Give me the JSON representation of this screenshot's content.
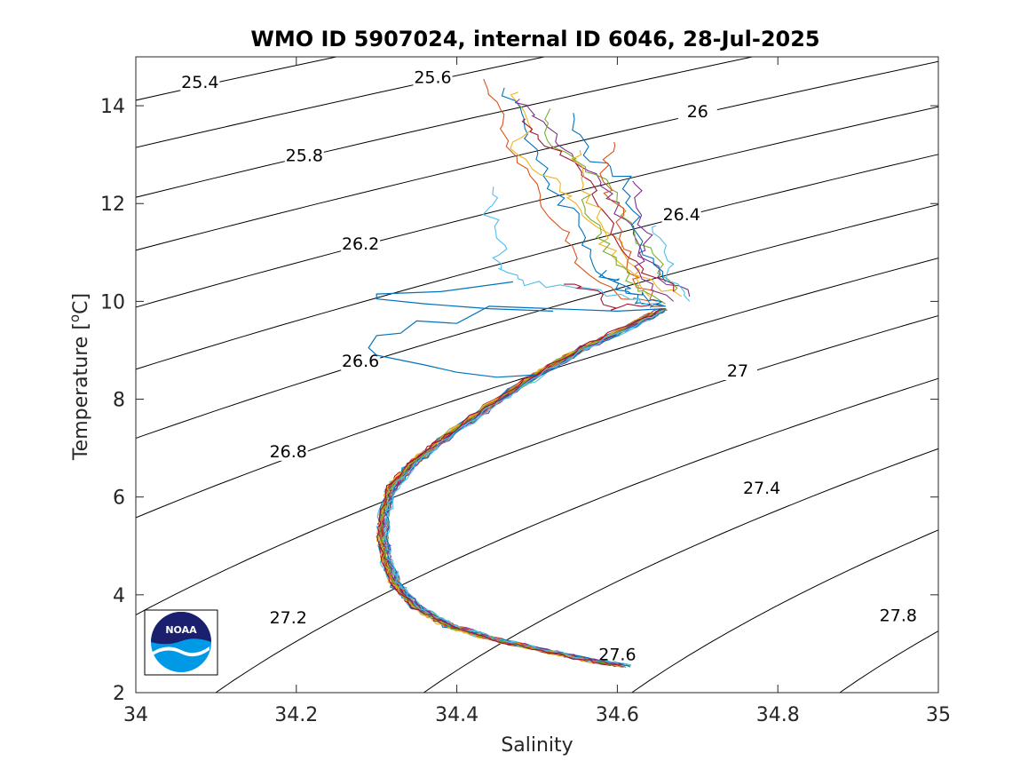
{
  "chart_data": {
    "type": "line",
    "title": "WMO ID 5907024, internal ID 6046, 28-Jul-2025",
    "xlabel": "Salinity",
    "ylabel": "Temperature [",
    "ylabel_sup": "o",
    "ylabel_end": "C]",
    "xlim": [
      34,
      35
    ],
    "ylim": [
      2,
      15
    ],
    "xticks": [
      34,
      34.2,
      34.4,
      34.6,
      34.8,
      35
    ],
    "xtick_labels": [
      "34",
      "34.2",
      "34.4",
      "34.6",
      "34.8",
      "35"
    ],
    "yticks": [
      2,
      4,
      6,
      8,
      10,
      12,
      14
    ],
    "ytick_labels": [
      "2",
      "4",
      "6",
      "8",
      "10",
      "12",
      "14"
    ],
    "grid": false,
    "density_contours": [
      {
        "label": "25.4",
        "label_s": 34.08,
        "label_t": 14.4
      },
      {
        "label": "25.6",
        "label_s": 34.37,
        "label_t": 14.5
      },
      {
        "label": "25.8",
        "label_s": 34.21,
        "label_t": 12.9
      },
      {
        "label": "26",
        "label_s": 34.7,
        "label_t": 13.8
      },
      {
        "label": "26.2",
        "label_s": 34.28,
        "label_t": 11.1
      },
      {
        "label": "26.4",
        "label_s": 34.68,
        "label_t": 11.7
      },
      {
        "label": "26.6",
        "label_s": 34.28,
        "label_t": 8.7
      },
      {
        "label": "26.8",
        "label_s": 34.19,
        "label_t": 6.85
      },
      {
        "label": "27",
        "label_s": 34.75,
        "label_t": 8.5
      },
      {
        "label": "27.2",
        "label_s": 34.19,
        "label_t": 3.45
      },
      {
        "label": "27.4",
        "label_s": 34.78,
        "label_t": 6.1
      },
      {
        "label": "27.6",
        "label_s": 34.6,
        "label_t": 2.7
      },
      {
        "label": "27.8",
        "label_s": 34.95,
        "label_t": 3.5
      }
    ],
    "series_colors": [
      "#0072BD",
      "#D95319",
      "#EDB120",
      "#7E2F8E",
      "#77AC30",
      "#4DBEEE",
      "#A2142F"
    ],
    "core_profile": [
      {
        "s": 34.61,
        "t": 2.55
      },
      {
        "s": 34.56,
        "t": 2.68
      },
      {
        "s": 34.5,
        "t": 2.9
      },
      {
        "s": 34.44,
        "t": 3.12
      },
      {
        "s": 34.39,
        "t": 3.38
      },
      {
        "s": 34.35,
        "t": 3.75
      },
      {
        "s": 34.325,
        "t": 4.2
      },
      {
        "s": 34.313,
        "t": 4.7
      },
      {
        "s": 34.308,
        "t": 5.2
      },
      {
        "s": 34.31,
        "t": 5.7
      },
      {
        "s": 34.32,
        "t": 6.2
      },
      {
        "s": 34.35,
        "t": 6.75
      },
      {
        "s": 34.39,
        "t": 7.25
      },
      {
        "s": 34.44,
        "t": 7.85
      },
      {
        "s": 34.5,
        "t": 8.5
      },
      {
        "s": 34.56,
        "t": 9.05
      },
      {
        "s": 34.63,
        "t": 9.6
      },
      {
        "s": 34.66,
        "t": 9.85
      }
    ],
    "outlier_profile": [
      {
        "s": 34.66,
        "t": 9.85
      },
      {
        "s": 34.6,
        "t": 9.8
      },
      {
        "s": 34.52,
        "t": 9.85
      },
      {
        "s": 34.44,
        "t": 9.9
      },
      {
        "s": 34.4,
        "t": 9.55
      },
      {
        "s": 34.35,
        "t": 9.6
      },
      {
        "s": 34.33,
        "t": 9.35
      },
      {
        "s": 34.3,
        "t": 9.3
      },
      {
        "s": 34.29,
        "t": 9.05
      },
      {
        "s": 34.3,
        "t": 8.9
      },
      {
        "s": 34.33,
        "t": 8.8
      },
      {
        "s": 34.36,
        "t": 8.7
      },
      {
        "s": 34.4,
        "t": 8.55
      },
      {
        "s": 34.45,
        "t": 8.45
      },
      {
        "s": 34.5,
        "t": 8.5
      }
    ],
    "outlier_upper": [
      {
        "s": 34.47,
        "t": 10.4
      },
      {
        "s": 34.38,
        "t": 10.2
      },
      {
        "s": 34.3,
        "t": 10.15
      },
      {
        "s": 34.3,
        "t": 10.05
      },
      {
        "s": 34.36,
        "t": 9.95
      },
      {
        "s": 34.44,
        "t": 9.85
      },
      {
        "s": 34.52,
        "t": 9.8
      }
    ],
    "upper_profiles": [
      [
        {
          "s": 34.46,
          "t": 14.35
        },
        {
          "s": 34.48,
          "t": 13.7
        },
        {
          "s": 34.5,
          "t": 13.0
        },
        {
          "s": 34.52,
          "t": 12.3
        },
        {
          "s": 34.55,
          "t": 11.6
        },
        {
          "s": 34.57,
          "t": 10.9
        },
        {
          "s": 34.6,
          "t": 10.3
        },
        {
          "s": 34.63,
          "t": 10.0
        },
        {
          "s": 34.66,
          "t": 9.9
        }
      ],
      [
        {
          "s": 34.44,
          "t": 14.5
        },
        {
          "s": 34.45,
          "t": 13.8
        },
        {
          "s": 34.47,
          "t": 13.0
        },
        {
          "s": 34.5,
          "t": 12.2
        },
        {
          "s": 34.53,
          "t": 11.5
        },
        {
          "s": 34.55,
          "t": 10.8
        },
        {
          "s": 34.6,
          "t": 10.1
        },
        {
          "s": 34.66,
          "t": 9.9
        }
      ],
      [
        {
          "s": 34.47,
          "t": 14.3
        },
        {
          "s": 34.49,
          "t": 13.6
        },
        {
          "s": 34.47,
          "t": 13.0
        },
        {
          "s": 34.53,
          "t": 12.4
        },
        {
          "s": 34.55,
          "t": 11.9
        },
        {
          "s": 34.6,
          "t": 11.2
        },
        {
          "s": 34.63,
          "t": 10.5
        },
        {
          "s": 34.68,
          "t": 10.1
        }
      ],
      [
        {
          "s": 34.47,
          "t": 14.1
        },
        {
          "s": 34.5,
          "t": 13.8
        },
        {
          "s": 34.53,
          "t": 13.2
        },
        {
          "s": 34.57,
          "t": 12.6
        },
        {
          "s": 34.6,
          "t": 12.0
        },
        {
          "s": 34.62,
          "t": 11.2
        },
        {
          "s": 34.65,
          "t": 10.6
        },
        {
          "s": 34.69,
          "t": 10.1
        }
      ],
      [
        {
          "s": 34.51,
          "t": 13.9
        },
        {
          "s": 34.52,
          "t": 13.2
        },
        {
          "s": 34.56,
          "t": 12.8
        },
        {
          "s": 34.6,
          "t": 12.2
        },
        {
          "s": 34.62,
          "t": 11.4
        },
        {
          "s": 34.65,
          "t": 10.8
        },
        {
          "s": 34.67,
          "t": 10.2
        }
      ],
      [
        {
          "s": 34.45,
          "t": 12.3
        },
        {
          "s": 34.44,
          "t": 11.8
        },
        {
          "s": 34.46,
          "t": 11.2
        },
        {
          "s": 34.45,
          "t": 10.7
        },
        {
          "s": 34.48,
          "t": 10.4
        },
        {
          "s": 34.54,
          "t": 10.3
        },
        {
          "s": 34.6,
          "t": 10.1
        },
        {
          "s": 34.66,
          "t": 9.9
        }
      ],
      [
        {
          "s": 34.48,
          "t": 13.7
        },
        {
          "s": 34.51,
          "t": 13.3
        },
        {
          "s": 34.55,
          "t": 12.7
        },
        {
          "s": 34.58,
          "t": 12.0
        },
        {
          "s": 34.6,
          "t": 11.3
        },
        {
          "s": 34.63,
          "t": 10.7
        },
        {
          "s": 34.67,
          "t": 10.2
        }
      ],
      [
        {
          "s": 34.54,
          "t": 13.9
        },
        {
          "s": 34.56,
          "t": 13.0
        },
        {
          "s": 34.61,
          "t": 12.5
        },
        {
          "s": 34.62,
          "t": 11.7
        },
        {
          "s": 34.64,
          "t": 11.0
        },
        {
          "s": 34.66,
          "t": 10.4
        }
      ],
      [
        {
          "s": 34.6,
          "t": 13.3
        },
        {
          "s": 34.58,
          "t": 12.6
        },
        {
          "s": 34.6,
          "t": 11.9
        },
        {
          "s": 34.61,
          "t": 11.1
        },
        {
          "s": 34.62,
          "t": 10.5
        },
        {
          "s": 34.65,
          "t": 10.0
        }
      ],
      [
        {
          "s": 34.55,
          "t": 13.1
        },
        {
          "s": 34.55,
          "t": 12.6
        },
        {
          "s": 34.57,
          "t": 12.0
        },
        {
          "s": 34.58,
          "t": 11.3
        },
        {
          "s": 34.61,
          "t": 10.7
        },
        {
          "s": 34.64,
          "t": 10.1
        }
      ],
      [
        {
          "s": 34.62,
          "t": 12.5
        },
        {
          "s": 34.63,
          "t": 11.8
        },
        {
          "s": 34.64,
          "t": 11.2
        },
        {
          "s": 34.62,
          "t": 10.6
        },
        {
          "s": 34.67,
          "t": 10.0
        }
      ],
      [
        {
          "s": 34.56,
          "t": 12.2
        },
        {
          "s": 34.57,
          "t": 11.5
        },
        {
          "s": 34.59,
          "t": 10.9
        },
        {
          "s": 34.62,
          "t": 10.3
        },
        {
          "s": 34.66,
          "t": 9.95
        }
      ],
      [
        {
          "s": 34.64,
          "t": 11.6
        },
        {
          "s": 34.66,
          "t": 11.0
        },
        {
          "s": 34.67,
          "t": 10.4
        },
        {
          "s": 34.69,
          "t": 10.0
        }
      ],
      [
        {
          "s": 34.53,
          "t": 10.4
        },
        {
          "s": 34.57,
          "t": 10.2
        },
        {
          "s": 34.6,
          "t": 9.85
        },
        {
          "s": 34.64,
          "t": 9.95
        }
      ],
      [
        {
          "s": 34.58,
          "t": 10.6
        },
        {
          "s": 34.61,
          "t": 10.3
        },
        {
          "s": 34.63,
          "t": 10.1
        },
        {
          "s": 34.66,
          "t": 9.9
        }
      ]
    ]
  },
  "logo": {
    "text": "NOAA"
  }
}
